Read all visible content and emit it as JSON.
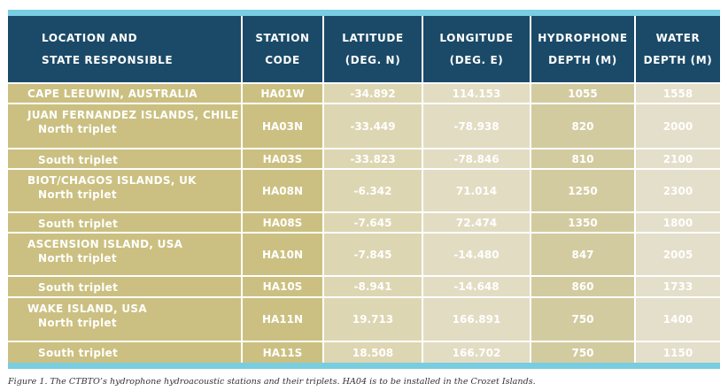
{
  "table": {
    "headers": {
      "location": [
        "LOCATION AND",
        "STATE RESPONSIBLE"
      ],
      "station": [
        "STATION",
        "CODE"
      ],
      "latitude": [
        "LATITUDE",
        "(DEG. N)"
      ],
      "longitude": [
        "LONGITUDE",
        "(DEG. E)"
      ],
      "hydrophone": [
        "HYDROPHONE",
        "DEPTH (M)"
      ],
      "water": [
        "WATER",
        "DEPTH (M)"
      ]
    },
    "rows": [
      {
        "location": "CAPE LEEUWIN, AUSTRALIA",
        "sub": "",
        "code": "HA01W",
        "lat": "-34.892",
        "lon": "114.153",
        "hyd": "1055",
        "water": "1558"
      },
      {
        "location": "JUAN FERNANDEZ ISLANDS, CHILE",
        "sub": "North triplet",
        "code": "HA03N",
        "lat": "-33.449",
        "lon": "-78.938",
        "hyd": "820",
        "water": "2000"
      },
      {
        "location": "",
        "sub": "South triplet",
        "code": "HA03S",
        "lat": "-33.823",
        "lon": "-78.846",
        "hyd": "810",
        "water": "2100"
      },
      {
        "location": "BIOT/CHAGOS ISLANDS, UK",
        "sub": "North triplet",
        "code": "HA08N",
        "lat": "-6.342",
        "lon": "71.014",
        "hyd": "1250",
        "water": "2300"
      },
      {
        "location": "",
        "sub": "South triplet",
        "code": "HA08S",
        "lat": "-7.645",
        "lon": "72.474",
        "hyd": "1350",
        "water": "1800"
      },
      {
        "location": "ASCENSION ISLAND, USA",
        "sub": "North triplet",
        "code": "HA10N",
        "lat": "-7.845",
        "lon": "-14.480",
        "hyd": "847",
        "water": "2005"
      },
      {
        "location": "",
        "sub": "South triplet",
        "code": "HA10S",
        "lat": "-8.941",
        "lon": "-14.648",
        "hyd": "860",
        "water": "1733"
      },
      {
        "location": "WAKE ISLAND, USA",
        "sub": "North triplet",
        "code": "HA11N",
        "lat": "19.713",
        "lon": "166.891",
        "hyd": "750",
        "water": "1400"
      },
      {
        "location": "",
        "sub": "South triplet",
        "code": "HA11S",
        "lat": "18.508",
        "lon": "166.702",
        "hyd": "750",
        "water": "1150"
      }
    ]
  },
  "caption": "Figure 1. The CTBTO’s hydrophone hydroacoustic stations and their triplets. HA04 is to be installed in the Crozet Islands."
}
